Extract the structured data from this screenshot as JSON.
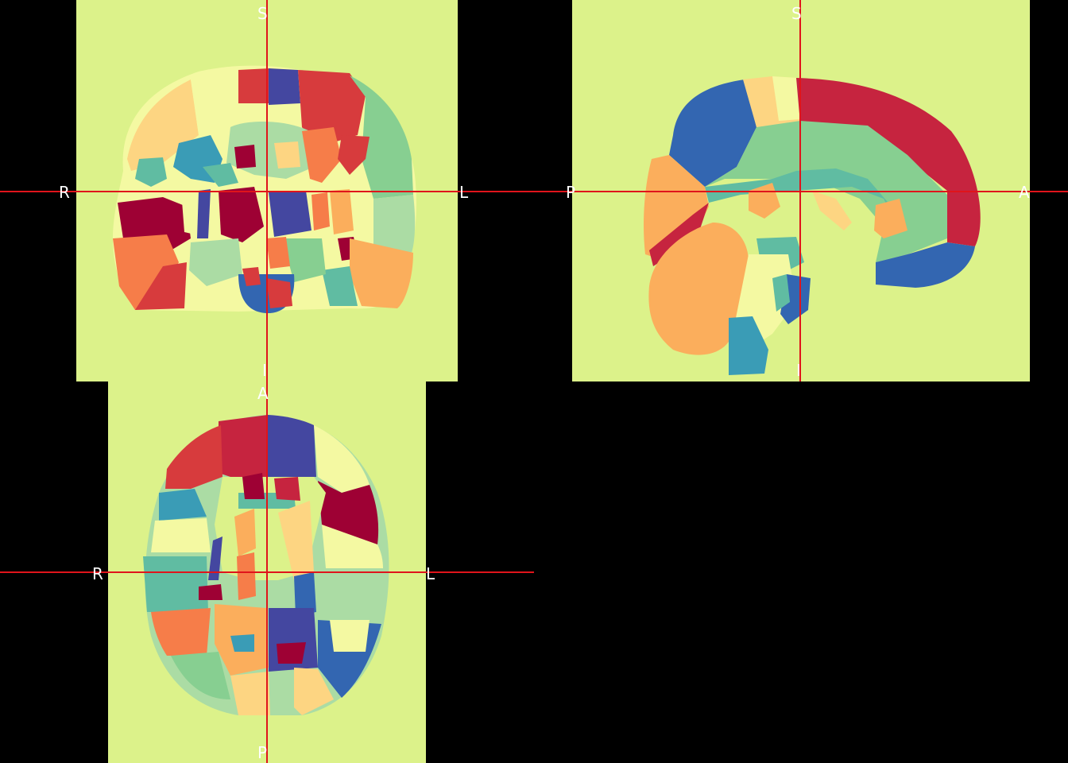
{
  "viewer": {
    "background": "#000000",
    "crosshair_color": "#e0141b",
    "slice_background": "#dcf28a",
    "colormap": "spectral",
    "palette": {
      "dark_red": "#9e0134",
      "red": "#d73b3d",
      "crimson": "#c6243f",
      "orange": "#f67d49",
      "light_orange": "#fbae5c",
      "peach": "#fdd582",
      "pale_yellow": "#f4f9a2",
      "lime": "#dcf28a",
      "light_green": "#abdca4",
      "green": "#87cf91",
      "teal_green": "#60bca2",
      "teal": "#3a9cb6",
      "blue": "#3366b1",
      "indigo": "#4447a0"
    }
  },
  "views": {
    "coronal": {
      "top": "S",
      "bottom": "I",
      "left": "R",
      "right": "L"
    },
    "sagittal": {
      "top": "S",
      "bottom": "I",
      "left": "P",
      "right": "A"
    },
    "axial": {
      "top": "A",
      "bottom": "P",
      "left": "R",
      "right": "L"
    }
  }
}
